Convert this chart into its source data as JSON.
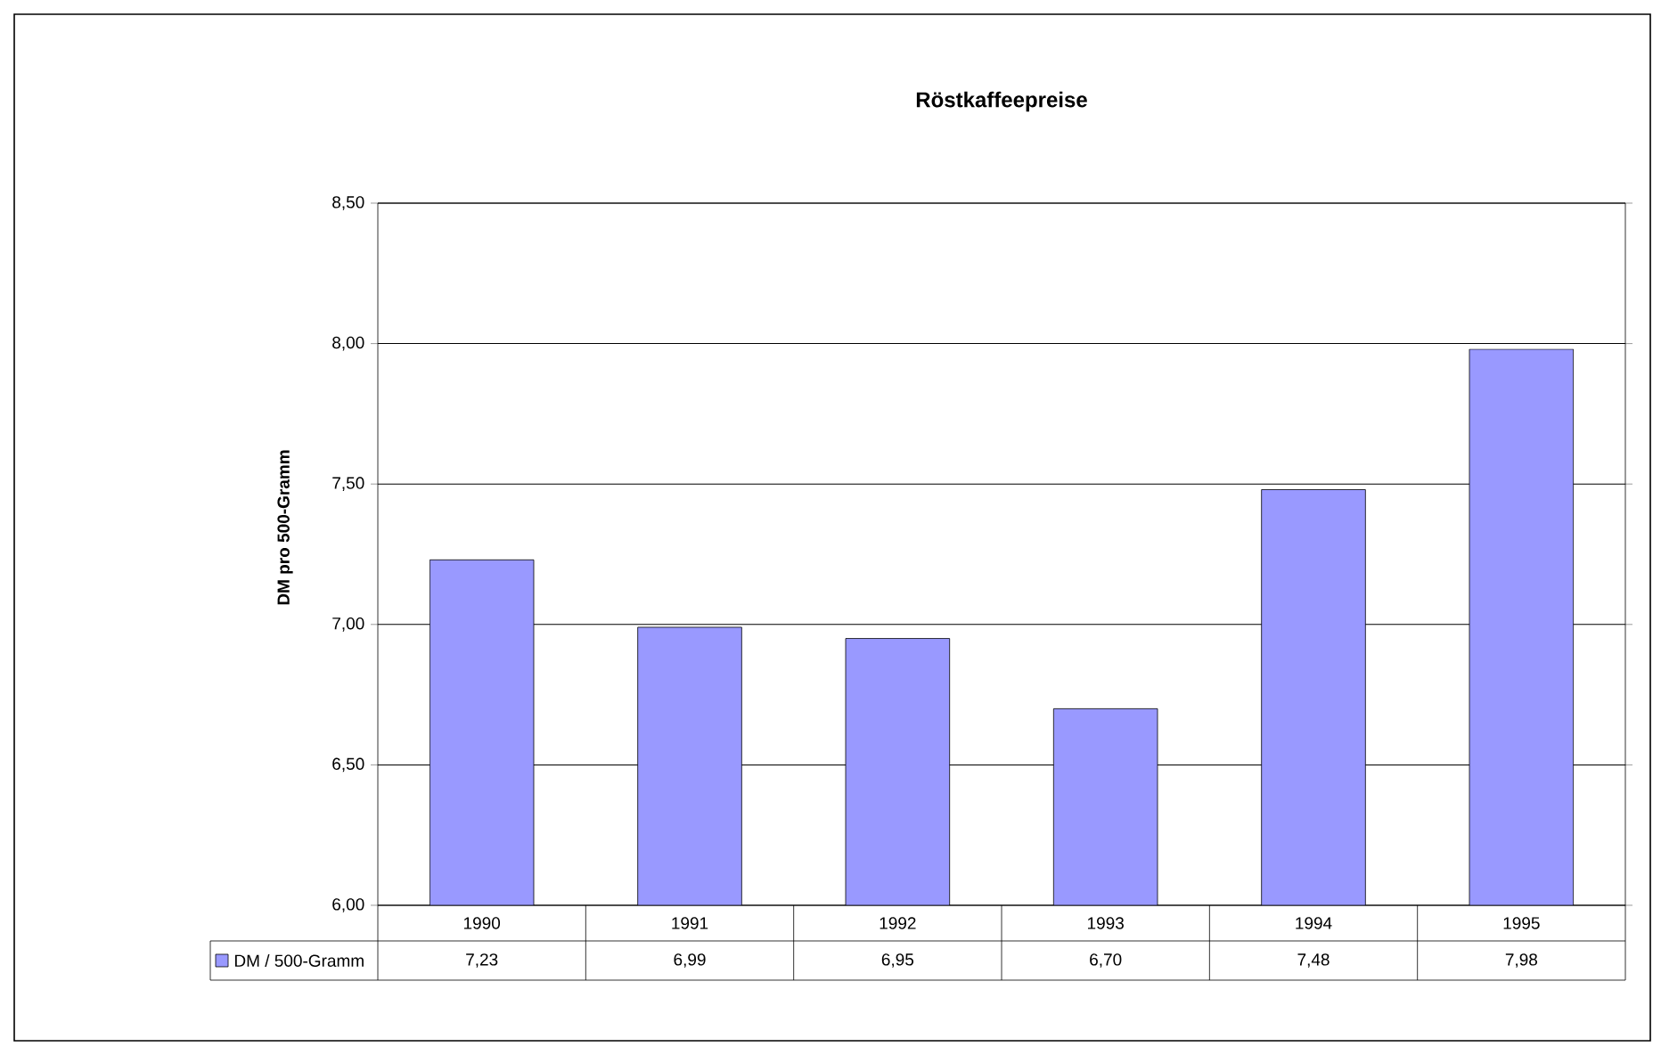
{
  "chart_data": {
    "type": "bar",
    "title": "Röstkaffeepreise",
    "ylabel": "DM pro 500-Gramm",
    "categories": [
      "1990",
      "1991",
      "1992",
      "1993",
      "1994",
      "1995"
    ],
    "series": [
      {
        "name": "DM / 500-Gramm",
        "color": "#9999ff",
        "values": [
          7.23,
          6.99,
          6.95,
          6.7,
          7.48,
          7.98
        ],
        "value_labels": [
          "7,23",
          "6,99",
          "6,95",
          "6,70",
          "7,48",
          "7,98"
        ]
      }
    ],
    "ylim": [
      6,
      8.5
    ],
    "yticks": [
      {
        "value": 6,
        "label": "6,00"
      },
      {
        "value": 6.5,
        "label": "6,50"
      },
      {
        "value": 7,
        "label": "7,00"
      },
      {
        "value": 7.5,
        "label": "7,50"
      },
      {
        "value": 8,
        "label": "8,00"
      },
      {
        "value": 8.5,
        "label": "8,50"
      }
    ],
    "grid": "y",
    "legend": "bottom"
  }
}
